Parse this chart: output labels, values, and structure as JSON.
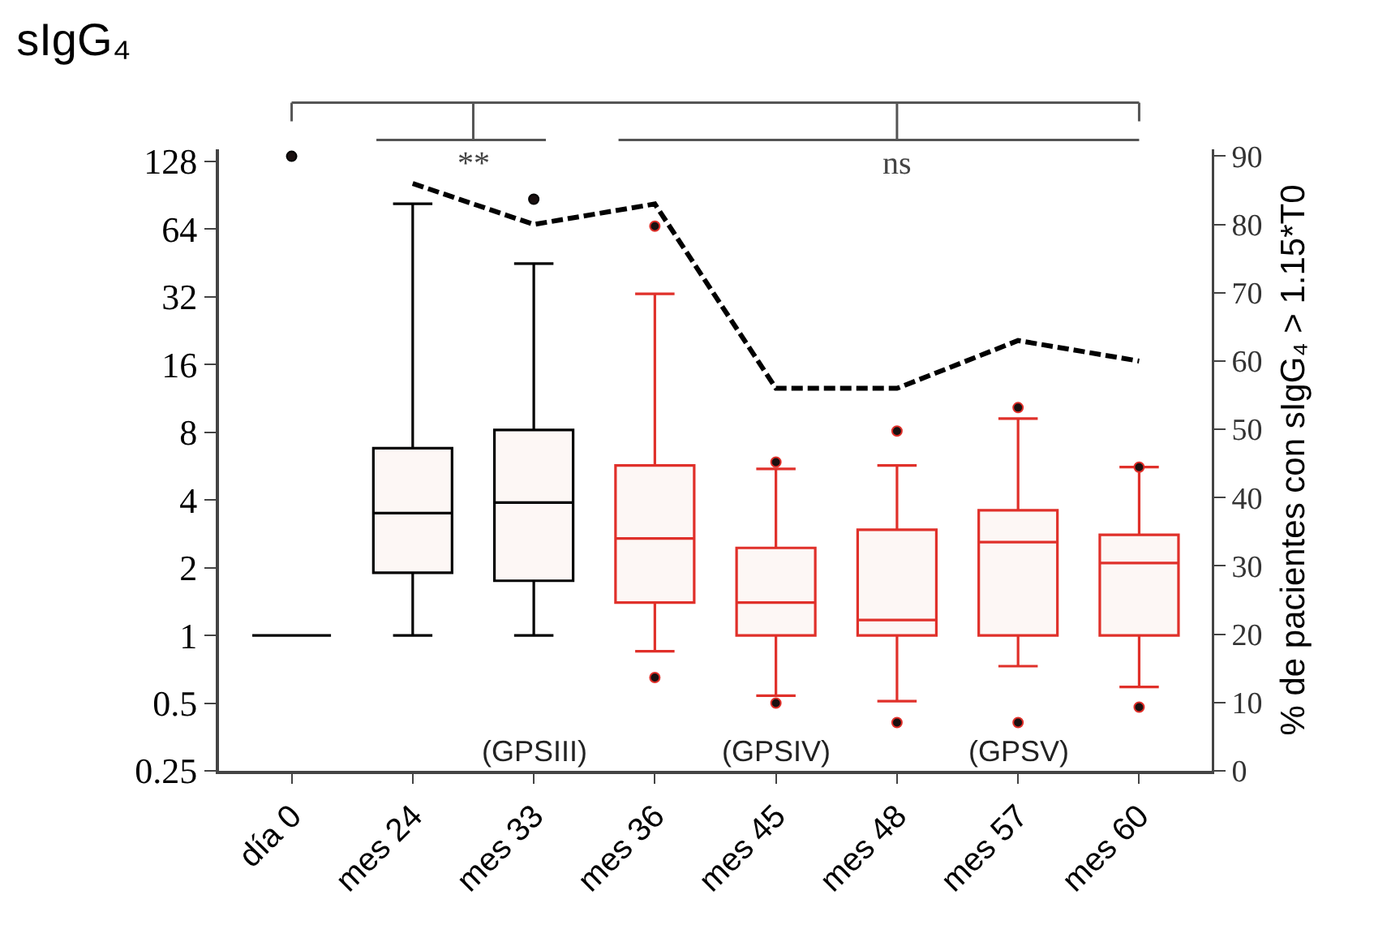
{
  "chart_data": {
    "type": "box",
    "title": "sIgG₄",
    "y2label": "% de pacientes con sIgG₄ > 1.15*T0",
    "categories": [
      "día 0",
      "mes 24",
      "mes 33",
      "mes 36",
      "mes 45",
      "mes 48",
      "mes 57",
      "mes 60"
    ],
    "colors": [
      "#000000",
      "#000000",
      "#000000",
      "#e0302a",
      "#e0302a",
      "#e0302a",
      "#e0302a",
      "#e0302a"
    ],
    "boxes": [
      {
        "low": 1,
        "q1": 1,
        "median": 1,
        "q3": 1,
        "high": 1,
        "outliers": [
          135
        ]
      },
      {
        "low": 1,
        "q1": 1.9,
        "median": 3.5,
        "q3": 6.8,
        "high": 83
      },
      {
        "low": 1,
        "q1": 1.75,
        "median": 3.9,
        "q3": 8.2,
        "high": 45,
        "outliers": [
          87
        ]
      },
      {
        "low": 0.85,
        "q1": 1.4,
        "median": 2.7,
        "q3": 5.7,
        "high": 33,
        "outliers": [
          0.65,
          66
        ]
      },
      {
        "low": 0.54,
        "q1": 1,
        "median": 1.4,
        "q3": 2.45,
        "high": 5.5,
        "outliers": [
          0.5,
          5.9
        ]
      },
      {
        "low": 0.51,
        "q1": 1,
        "median": 1.17,
        "q3": 2.95,
        "high": 5.7,
        "outliers": [
          0.41,
          8.1
        ]
      },
      {
        "low": 0.73,
        "q1": 1,
        "median": 2.6,
        "q3": 3.6,
        "high": 9.2,
        "outliers": [
          0.41,
          10.3
        ]
      },
      {
        "low": 0.59,
        "q1": 1,
        "median": 2.1,
        "q3": 2.8,
        "high": 5.6,
        "outliers": [
          0.48,
          5.6
        ]
      }
    ],
    "series": [
      {
        "type": "line",
        "axis": "y2",
        "color": "#000000",
        "line_style": "dashed",
        "values": [
          null,
          86,
          80,
          83,
          56,
          56,
          63,
          60
        ]
      }
    ],
    "log": true,
    "ylim": [
      0.25,
      145
    ],
    "yticks": [
      0.25,
      0.5,
      1,
      2,
      4,
      8,
      16,
      32,
      64,
      128
    ],
    "y2lim": [
      0,
      91
    ],
    "y2ticks": [
      0,
      10,
      20,
      30,
      40,
      50,
      60,
      70,
      80,
      90
    ],
    "annotations": [
      "**",
      "ns",
      "(GPSIII)",
      "(GPSIV)",
      "(GPSV)"
    ],
    "grid": false
  }
}
